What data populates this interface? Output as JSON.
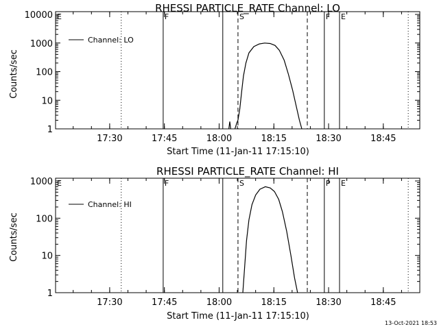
{
  "footer_timestamp": "13-Oct-2021 18:53",
  "chart_data": [
    {
      "type": "line",
      "title": "RHESSI PARTICLE_RATE Channel: LO",
      "xlabel": "Start Time (11-Jan-11 17:15:10)",
      "ylabel": "Counts/sec",
      "yscale": "log",
      "xlim": [
        "17:15:10",
        "18:55:00"
      ],
      "ylim": [
        1,
        10000
      ],
      "x_ticks": [
        "17:30",
        "17:45",
        "18:00",
        "18:15",
        "18:30",
        "18:45"
      ],
      "y_ticks": [
        "1",
        "10",
        "100",
        "1000",
        "10000"
      ],
      "legend": {
        "placement": "top-left",
        "entries": [
          "Channel: LO"
        ]
      },
      "event_markers": [
        {
          "label": "E",
          "time": "17:15:10",
          "style": "solid"
        },
        {
          "label": "",
          "time": "17:33:10",
          "style": "dotted"
        },
        {
          "label": "F",
          "time": "17:44:40",
          "style": "solid"
        },
        {
          "label": "",
          "time": "18:01:00",
          "style": "solid"
        },
        {
          "label": "S",
          "time": "18:05:10",
          "style": "dashed"
        },
        {
          "label": "",
          "time": "18:24:10",
          "style": "dashed"
        },
        {
          "label": "F",
          "time": "18:28:50",
          "style": "solid"
        },
        {
          "label": "E",
          "time": "18:33:00",
          "style": "solid"
        },
        {
          "label": "",
          "time": "18:51:50",
          "style": "dotted"
        }
      ],
      "series": [
        {
          "name": "Channel: LO",
          "segments": [
            [
              [
                "18:02:40",
                1
              ],
              [
                "18:02:55",
                1.8
              ],
              [
                "18:03:10",
                1
              ]
            ],
            [
              [
                "18:04:20",
                1
              ],
              [
                "18:04:50",
                1.6
              ],
              [
                "18:05:10",
                2
              ],
              [
                "18:05:40",
                5
              ],
              [
                "18:06:10",
                20
              ],
              [
                "18:06:40",
                70
              ],
              [
                "18:07:20",
                200
              ],
              [
                "18:08:10",
                450
              ],
              [
                "18:09:30",
                750
              ],
              [
                "18:11:00",
                930
              ],
              [
                "18:12:30",
                1000
              ],
              [
                "18:14:00",
                960
              ],
              [
                "18:15:20",
                820
              ],
              [
                "18:16:30",
                560
              ],
              [
                "18:17:50",
                250
              ],
              [
                "18:19:00",
                80
              ],
              [
                "18:20:10",
                22
              ],
              [
                "18:21:10",
                6
              ],
              [
                "18:22:00",
                2
              ],
              [
                "18:22:40",
                1
              ]
            ]
          ]
        }
      ]
    },
    {
      "type": "line",
      "title": "RHESSI PARTICLE_RATE Channel: HI",
      "xlabel": "Start Time (11-Jan-11 17:15:10)",
      "ylabel": "Counts/sec",
      "yscale": "log",
      "xlim": [
        "17:15:10",
        "18:55:00"
      ],
      "ylim": [
        1,
        1000
      ],
      "x_ticks": [
        "17:30",
        "17:45",
        "18:00",
        "18:15",
        "18:30",
        "18:45"
      ],
      "y_ticks": [
        "1",
        "10",
        "100",
        "1000"
      ],
      "legend": {
        "placement": "top-left",
        "entries": [
          "Channel: HI"
        ]
      },
      "event_markers": [
        {
          "label": "E",
          "time": "17:15:10",
          "style": "solid"
        },
        {
          "label": "",
          "time": "17:33:10",
          "style": "dotted"
        },
        {
          "label": "F",
          "time": "17:44:40",
          "style": "solid"
        },
        {
          "label": "",
          "time": "18:01:00",
          "style": "solid"
        },
        {
          "label": "S",
          "time": "18:05:10",
          "style": "dashed"
        },
        {
          "label": "",
          "time": "18:24:10",
          "style": "dashed"
        },
        {
          "label": "P",
          "time": "18:28:50",
          "style": "solid"
        },
        {
          "label": "E",
          "time": "18:33:00",
          "style": "solid"
        },
        {
          "label": "",
          "time": "18:51:50",
          "style": "dotted"
        }
      ],
      "series": [
        {
          "name": "Channel: HI",
          "segments": [
            [
              [
                "18:06:30",
                1
              ],
              [
                "18:07:00",
                5
              ],
              [
                "18:07:30",
                25
              ],
              [
                "18:08:10",
                90
              ],
              [
                "18:09:00",
                230
              ],
              [
                "18:10:00",
                420
              ],
              [
                "18:11:10",
                600
              ],
              [
                "18:12:40",
                700
              ],
              [
                "18:14:00",
                650
              ],
              [
                "18:15:10",
                520
              ],
              [
                "18:16:20",
                320
              ],
              [
                "18:17:20",
                150
              ],
              [
                "18:18:30",
                45
              ],
              [
                "18:19:40",
                10
              ],
              [
                "18:20:40",
                2.5
              ],
              [
                "18:21:30",
                1
              ]
            ]
          ]
        }
      ]
    }
  ]
}
